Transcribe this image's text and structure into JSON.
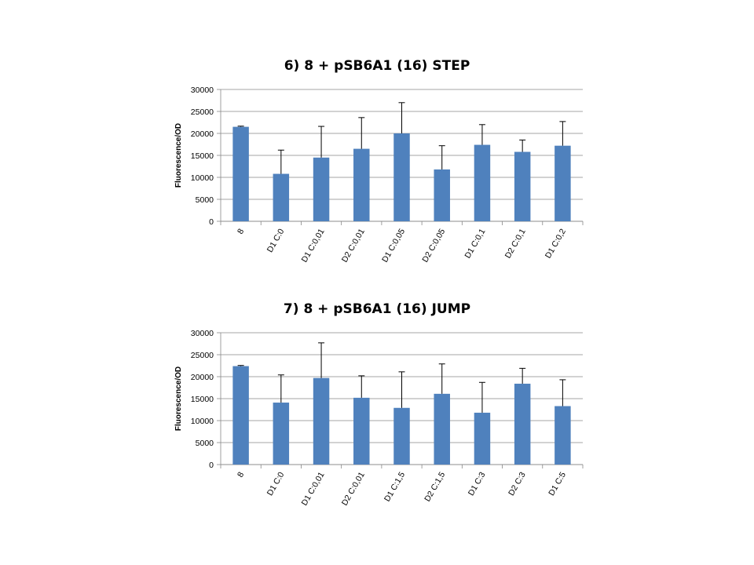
{
  "chart_data": [
    {
      "type": "bar",
      "title": "6) 8 + pSB6A1 (16) STEP",
      "ylabel": "Fluorescence/OD",
      "xlabel": "",
      "ylim": [
        0,
        30000
      ],
      "yticks": [
        0,
        5000,
        10000,
        15000,
        20000,
        25000,
        30000
      ],
      "grid": true,
      "categories": [
        "8",
        "D1 C:0",
        "D1 C:0,01",
        "D2 C:0,01",
        "D1 C:0,05",
        "D2 C:0,05",
        "D1 C:0,1",
        "D2 C:0,1",
        "D1 C:0,2"
      ],
      "values": [
        21500,
        10800,
        14500,
        16500,
        20000,
        11800,
        17400,
        15800,
        17200
      ],
      "error_plus": [
        150,
        5400,
        7100,
        7100,
        7000,
        5400,
        4600,
        2700,
        5500
      ],
      "bar_color": "#4F81BD"
    },
    {
      "type": "bar",
      "title": "7) 8 + pSB6A1 (16) JUMP",
      "ylabel": "Fluorescence/OD",
      "xlabel": "",
      "ylim": [
        0,
        30000
      ],
      "yticks": [
        0,
        5000,
        10000,
        15000,
        20000,
        25000,
        30000
      ],
      "grid": true,
      "categories": [
        "8",
        "D1 C:0",
        "D1 C:0,01",
        "D2 C:0,01",
        "D1 C:1,5",
        "D2 C:1,5",
        "D1 C:3",
        "D2 C:3",
        "D1 C:5"
      ],
      "values": [
        22400,
        14100,
        19700,
        15200,
        12900,
        16100,
        11800,
        18400,
        13300
      ],
      "error_plus": [
        150,
        6300,
        8000,
        5000,
        8200,
        6800,
        6900,
        3500,
        6000
      ],
      "bar_color": "#4F81BD"
    }
  ]
}
